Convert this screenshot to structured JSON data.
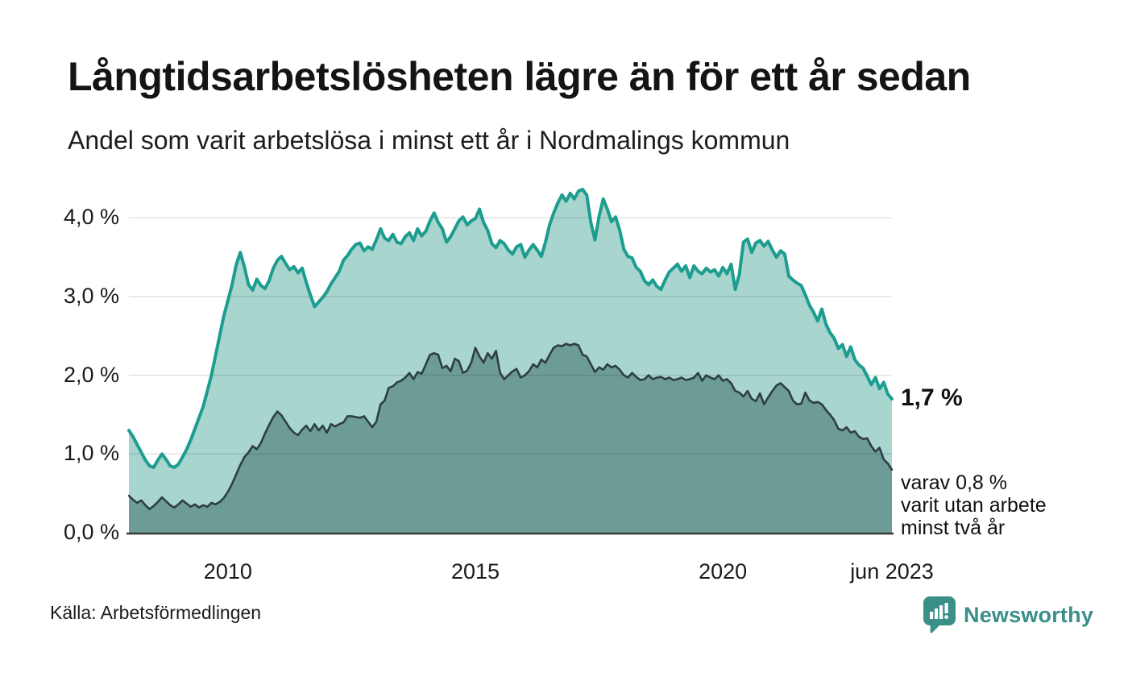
{
  "header": {
    "title": "Långtidsarbetslösheten lägre än för ett år sedan",
    "subtitle": "Andel som varit arbetslösa i minst ett år i Nordmalings kommun"
  },
  "footer": {
    "source": "Källa: Arbetsförmedlingen",
    "logo_text": "Newsworthy"
  },
  "colors": {
    "line_primary": "#1d9d8f",
    "fill_primary": "#a8d5ce",
    "line_secondary": "#2d3e46",
    "fill_secondary": "#6d9b96",
    "gridline": "rgba(0,0,0,0.11)",
    "axis_line": "#383838",
    "logo_teal": "#3a8f88"
  },
  "chart_data": {
    "type": "area",
    "title": "Långtidsarbetslösheten lägre än för ett år sedan",
    "subtitle": "Andel som varit arbetslösa i minst ett år i Nordmalings kommun",
    "x_unit": "month",
    "x_start": "2008-01",
    "x_end": "2023-06",
    "ylim": [
      0,
      4.5
    ],
    "grid": true,
    "y_ticks": [
      {
        "label": "0,0 %",
        "value": 0
      },
      {
        "label": "1,0 %",
        "value": 1
      },
      {
        "label": "2,0 %",
        "value": 2
      },
      {
        "label": "3,0 %",
        "value": 3
      },
      {
        "label": "4,0 %",
        "value": 4
      }
    ],
    "x_ticks": [
      {
        "label": "2010",
        "month_index": 24
      },
      {
        "label": "2015",
        "month_index": 84
      },
      {
        "label": "2020",
        "month_index": 144
      },
      {
        "label": "jun 2023",
        "month_index": 185
      }
    ],
    "end_labels": {
      "primary": "1,7 %",
      "secondary_lines": [
        "varav 0,8 %",
        "varit utan arbete",
        "minst två år"
      ]
    },
    "series": [
      {
        "name": "arbetslösa minst ett år",
        "end_value_pct": 1.7,
        "values": [
          1.3,
          1.22,
          1.12,
          1.02,
          0.92,
          0.85,
          0.83,
          0.92,
          1.0,
          0.93,
          0.85,
          0.83,
          0.87,
          0.96,
          1.06,
          1.18,
          1.32,
          1.46,
          1.6,
          1.8,
          2.0,
          2.25,
          2.5,
          2.75,
          2.95,
          3.15,
          3.4,
          3.56,
          3.38,
          3.15,
          3.08,
          3.22,
          3.14,
          3.1,
          3.2,
          3.36,
          3.46,
          3.51,
          3.42,
          3.34,
          3.38,
          3.3,
          3.36,
          3.18,
          3.02,
          2.87,
          2.93,
          2.99,
          3.06,
          3.16,
          3.24,
          3.32,
          3.46,
          3.52,
          3.6,
          3.66,
          3.68,
          3.58,
          3.63,
          3.6,
          3.72,
          3.86,
          3.74,
          3.71,
          3.79,
          3.69,
          3.67,
          3.76,
          3.81,
          3.71,
          3.86,
          3.77,
          3.83,
          3.96,
          4.06,
          3.94,
          3.86,
          3.69,
          3.76,
          3.86,
          3.96,
          4.01,
          3.91,
          3.96,
          3.99,
          4.11,
          3.94,
          3.84,
          3.67,
          3.62,
          3.71,
          3.67,
          3.59,
          3.54,
          3.63,
          3.66,
          3.5,
          3.59,
          3.66,
          3.59,
          3.51,
          3.69,
          3.91,
          4.06,
          4.19,
          4.29,
          4.21,
          4.31,
          4.24,
          4.34,
          4.36,
          4.29,
          3.94,
          3.72,
          4.02,
          4.24,
          4.11,
          3.95,
          4.01,
          3.84,
          3.6,
          3.51,
          3.49,
          3.37,
          3.32,
          3.2,
          3.15,
          3.21,
          3.13,
          3.09,
          3.21,
          3.31,
          3.36,
          3.41,
          3.32,
          3.39,
          3.24,
          3.39,
          3.32,
          3.29,
          3.36,
          3.31,
          3.34,
          3.26,
          3.37,
          3.29,
          3.41,
          3.09,
          3.28,
          3.69,
          3.73,
          3.56,
          3.68,
          3.71,
          3.64,
          3.7,
          3.59,
          3.5,
          3.58,
          3.54,
          3.26,
          3.21,
          3.17,
          3.14,
          3.02,
          2.89,
          2.8,
          2.69,
          2.84,
          2.65,
          2.54,
          2.47,
          2.34,
          2.39,
          2.24,
          2.36,
          2.2,
          2.13,
          2.09,
          1.99,
          1.88,
          1.97,
          1.83,
          1.91,
          1.76,
          1.7
        ]
      },
      {
        "name": "arbetslösa minst två år",
        "end_value_pct": 0.8,
        "values": [
          0.47,
          0.42,
          0.38,
          0.41,
          0.35,
          0.3,
          0.34,
          0.39,
          0.45,
          0.4,
          0.35,
          0.32,
          0.36,
          0.41,
          0.37,
          0.33,
          0.36,
          0.32,
          0.35,
          0.33,
          0.38,
          0.36,
          0.39,
          0.44,
          0.52,
          0.62,
          0.74,
          0.86,
          0.96,
          1.02,
          1.1,
          1.06,
          1.14,
          1.26,
          1.37,
          1.47,
          1.54,
          1.49,
          1.41,
          1.33,
          1.27,
          1.24,
          1.31,
          1.36,
          1.29,
          1.38,
          1.3,
          1.36,
          1.27,
          1.38,
          1.35,
          1.38,
          1.4,
          1.48,
          1.48,
          1.47,
          1.46,
          1.48,
          1.41,
          1.34,
          1.41,
          1.63,
          1.68,
          1.84,
          1.86,
          1.91,
          1.93,
          1.97,
          2.03,
          1.95,
          2.04,
          2.02,
          2.14,
          2.26,
          2.28,
          2.26,
          2.09,
          2.12,
          2.05,
          2.21,
          2.18,
          2.03,
          2.06,
          2.16,
          2.35,
          2.24,
          2.16,
          2.28,
          2.21,
          2.31,
          2.03,
          1.95,
          2.0,
          2.05,
          2.08,
          1.97,
          2.0,
          2.05,
          2.14,
          2.1,
          2.2,
          2.16,
          2.26,
          2.35,
          2.38,
          2.37,
          2.4,
          2.38,
          2.4,
          2.38,
          2.26,
          2.24,
          2.14,
          2.04,
          2.1,
          2.07,
          2.14,
          2.1,
          2.12,
          2.07,
          2.0,
          1.97,
          2.03,
          1.98,
          1.94,
          1.95,
          2.0,
          1.95,
          1.97,
          1.98,
          1.95,
          1.97,
          1.94,
          1.95,
          1.97,
          1.94,
          1.95,
          1.97,
          2.03,
          1.93,
          2.0,
          1.97,
          1.95,
          2.0,
          1.93,
          1.95,
          1.9,
          1.8,
          1.78,
          1.73,
          1.8,
          1.7,
          1.67,
          1.77,
          1.63,
          1.72,
          1.8,
          1.87,
          1.9,
          1.85,
          1.8,
          1.68,
          1.63,
          1.64,
          1.78,
          1.68,
          1.65,
          1.66,
          1.63,
          1.56,
          1.5,
          1.43,
          1.32,
          1.3,
          1.34,
          1.27,
          1.29,
          1.22,
          1.19,
          1.2,
          1.1,
          1.03,
          1.08,
          0.93,
          0.88,
          0.8
        ]
      }
    ]
  }
}
